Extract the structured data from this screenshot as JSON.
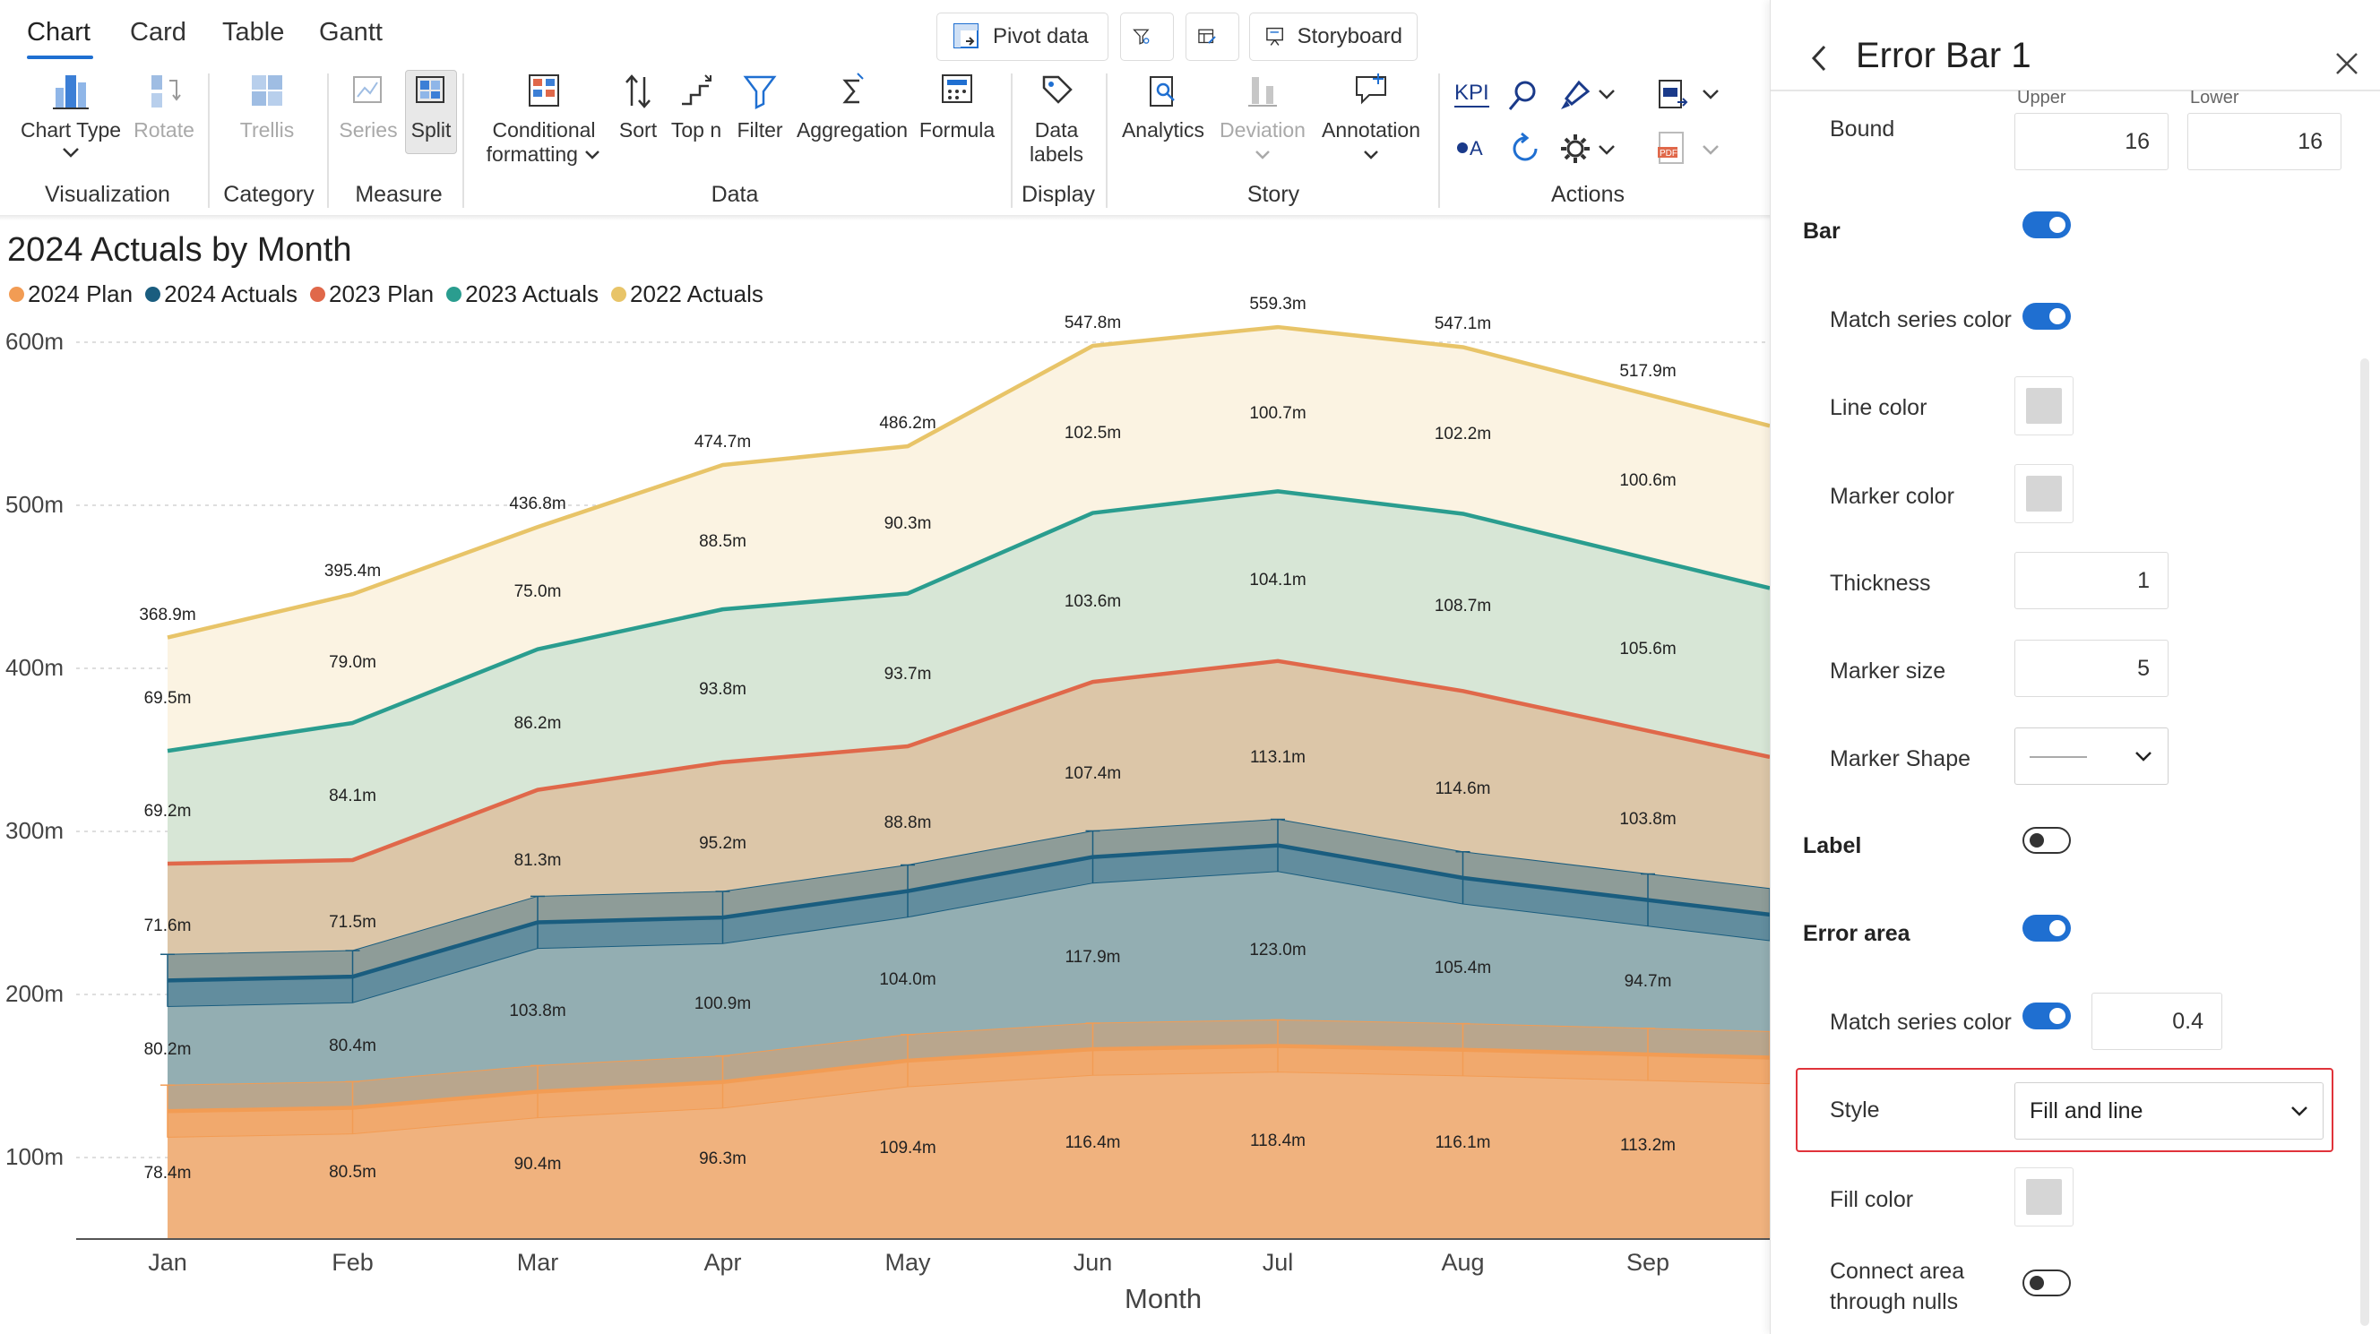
{
  "tabs": [
    "Chart",
    "Card",
    "Table",
    "Gantt"
  ],
  "toolbar": {
    "pivot": "Pivot data",
    "storyboard": "Storyboard"
  },
  "ribbon": {
    "chart_type": "Chart Type",
    "rotate": "Rotate",
    "trellis": "Trellis",
    "series": "Series",
    "split": "Split",
    "conditional_1": "Conditional",
    "conditional_2": "formatting",
    "sort": "Sort",
    "topn": "Top n",
    "filter": "Filter",
    "aggregation": "Aggregation",
    "formula": "Formula",
    "data_labels_1": "Data",
    "data_labels_2": "labels",
    "analytics": "Analytics",
    "deviation": "Deviation",
    "annotation": "Annotation",
    "kpi": "KPI"
  },
  "groups": {
    "visualization": "Visualization",
    "category": "Category",
    "measure": "Measure",
    "data": "Data",
    "display": "Display",
    "story": "Story",
    "actions": "Actions"
  },
  "chart": {
    "title": "2024 Actuals by Month",
    "xlabel": "Month"
  },
  "colors": {
    "plan2024": "#f29c54",
    "act2024": "#1a5d7f",
    "plan2023": "#e0684a",
    "act2023": "#2a9d8f",
    "act2022": "#e8c468",
    "accent": "#1f6fd1",
    "highlight": "#e0333a"
  },
  "chart_data": {
    "type": "area",
    "title": "2024 Actuals by Month",
    "xlabel": "Month",
    "ylabel": "",
    "categories": [
      "Jan",
      "Feb",
      "Mar",
      "Apr",
      "May",
      "Jun",
      "Jul",
      "Aug",
      "Sep"
    ],
    "y_ticks": [
      "100m",
      "200m",
      "300m",
      "400m",
      "500m",
      "600m"
    ],
    "ylim": [
      50,
      600
    ],
    "series": [
      {
        "name": "2024 Plan",
        "values": [
          78.4,
          80.5,
          90.4,
          96.3,
          109.4,
          116.4,
          118.4,
          116.1,
          113.2
        ]
      },
      {
        "name": "2024 Actuals",
        "values": [
          80.2,
          80.4,
          103.8,
          100.9,
          104.0,
          117.9,
          123.0,
          105.4,
          94.7
        ]
      },
      {
        "name": "2023 Plan",
        "values": [
          71.6,
          71.5,
          81.3,
          95.2,
          88.8,
          107.4,
          113.1,
          114.6,
          103.8
        ]
      },
      {
        "name": "2023 Actuals",
        "values": [
          69.2,
          84.1,
          86.2,
          93.8,
          93.7,
          103.6,
          104.1,
          108.7,
          105.6
        ]
      },
      {
        "name": "2022 Actuals",
        "values": [
          69.5,
          79.0,
          75.0,
          88.5,
          90.3,
          102.5,
          100.7,
          102.2,
          100.6
        ]
      }
    ],
    "stack_totals": [
      "368.9m",
      "395.4m",
      "436.8m",
      "474.7m",
      "486.2m",
      "547.8m",
      "559.3m",
      "547.1m",
      "517.9m"
    ],
    "labels": {
      "plan2024": [
        "78.4m",
        "80.5m",
        "90.4m",
        "96.3m",
        "109.4m",
        "116.4m",
        "118.4m",
        "116.1m",
        "113.2m"
      ],
      "act2024": [
        "80.2m",
        "80.4m",
        "103.8m",
        "100.9m",
        "104.0m",
        "117.9m",
        "123.0m",
        "105.4m",
        "94.7m"
      ],
      "plan2023": [
        "71.6m",
        "71.5m",
        "81.3m",
        "95.2m",
        "88.8m",
        "107.4m",
        "113.1m",
        "114.6m",
        "103.8m"
      ],
      "act2023": [
        "69.2m",
        "84.1m",
        "86.2m",
        "93.8m",
        "93.7m",
        "103.6m",
        "104.1m",
        "108.7m",
        "105.6m"
      ],
      "act2022": [
        "69.5m",
        "79.0m",
        "75.0m",
        "88.5m",
        "90.3m",
        "102.5m",
        "100.7m",
        "102.2m",
        "100.6m"
      ]
    },
    "legend_position": "top-left"
  },
  "panel": {
    "title": "Error Bar 1",
    "bound_label": "Bound",
    "upper_label": "Upper",
    "lower_label": "Lower",
    "upper_value": "16",
    "lower_value": "16",
    "bar_label": "Bar",
    "match_series_color": "Match series color",
    "line_color": "Line color",
    "marker_color": "Marker color",
    "thickness_label": "Thickness",
    "thickness_value": "1",
    "marker_size_label": "Marker size",
    "marker_size_value": "5",
    "marker_shape_label": "Marker Shape",
    "label_label": "Label",
    "error_area_label": "Error area",
    "match_series_color_2": "Match series color",
    "opacity_value": "0.4",
    "style_label": "Style",
    "style_value": "Fill and line",
    "fill_color": "Fill color",
    "connect_1": "Connect area",
    "connect_2": "through nulls"
  }
}
